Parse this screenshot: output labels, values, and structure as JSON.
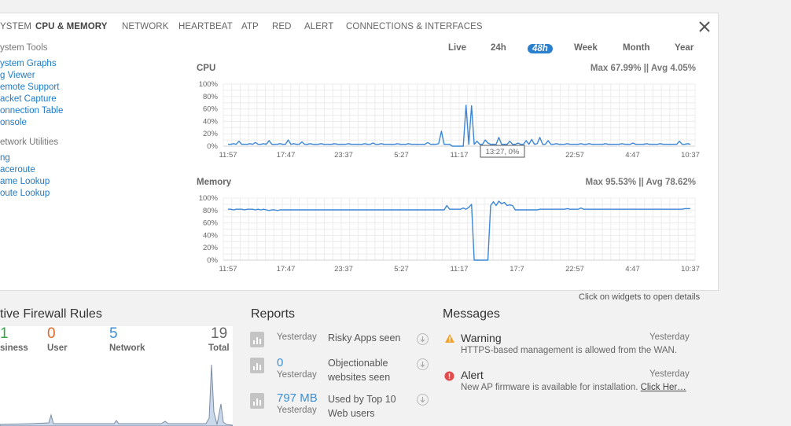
{
  "tabs": [
    "YSTEM",
    "CPU & MEMORY",
    "NETWORK",
    "HEARTBEAT",
    "ATP",
    "RED",
    "ALERT",
    "CONNECTIONS & INTERFACES"
  ],
  "active_tab": "CPU & MEMORY",
  "sidebar": {
    "system_tools_header": "ystem Tools",
    "system_tools": [
      "ystem Graphs",
      "g Viewer",
      "emote Support",
      "acket Capture",
      "onnection Table",
      "onsole"
    ],
    "network_utilities_header": "etwork Utilities",
    "network_utilities": [
      "ng",
      "aceroute",
      "ame Lookup",
      "oute Lookup"
    ]
  },
  "time_ranges": [
    "Live",
    "24h",
    "48h",
    "Week",
    "Month",
    "Year"
  ],
  "selected_range": "48h",
  "cpu": {
    "title": "CPU",
    "stats": "Max 67.99% || Avg 4.05%",
    "tooltip": "13:27, 0%"
  },
  "memory": {
    "title": "Memory",
    "stats": "Max 95.53% || Avg 78.62%"
  },
  "hint": "Click on widgets to open details",
  "firewall": {
    "title": "tive Firewall Rules",
    "counts": [
      {
        "value": "1",
        "label": "siness",
        "color": "#3aa64a"
      },
      {
        "value": "0",
        "label": "User",
        "color": "#e0692c"
      },
      {
        "value": "5",
        "label": "Network",
        "color": "#3a8fd8"
      },
      {
        "value": "19",
        "label": "Total",
        "color": "#666666"
      }
    ]
  },
  "reports": {
    "title": "Reports",
    "items": [
      {
        "value": "",
        "when": "Yesterday",
        "text": "Risky Apps seen"
      },
      {
        "value": "0",
        "when": "Yesterday",
        "text": "Objectionable websites seen"
      },
      {
        "value": "797 MB",
        "when": "Yesterday",
        "text": "Used by Top 10 Web users"
      }
    ]
  },
  "messages": {
    "title": "Messages",
    "items": [
      {
        "type": "Warning",
        "when": "Yesterday",
        "text": "HTTPS-based management is allowed from the WAN.",
        "link": ""
      },
      {
        "type": "Alert",
        "when": "Yesterday",
        "text": "New AP firmware is available for installation.",
        "link": "Click Her…"
      }
    ]
  },
  "chart_data": [
    {
      "type": "line",
      "title": "CPU",
      "ylabel": "",
      "ylim": [
        0,
        100
      ],
      "y_ticks": [
        "0%",
        "20%",
        "40%",
        "60%",
        "80%",
        "100%"
      ],
      "x_ticks": [
        "11:57",
        "17:47",
        "23:37",
        "5:27",
        "11:17",
        "17:7",
        "22:57",
        "4:47",
        "10:37"
      ],
      "series": [
        {
          "values": [
            3,
            3,
            4,
            3,
            8,
            3,
            3,
            3,
            4,
            3,
            6,
            3,
            3,
            4,
            3,
            9,
            3,
            3,
            3,
            4,
            3,
            3,
            10,
            3,
            4,
            3,
            3,
            7,
            3,
            3,
            4,
            3,
            3,
            3,
            4,
            3,
            3,
            3,
            3,
            4,
            3,
            3,
            3,
            3,
            4,
            3,
            3,
            3,
            3,
            3,
            4,
            3,
            3,
            5,
            3,
            3,
            4,
            3,
            3,
            3,
            3,
            3,
            4,
            3,
            3,
            3,
            4,
            3,
            3,
            3,
            3,
            3,
            3,
            6,
            3,
            3,
            3,
            4,
            24,
            3,
            3,
            3,
            0,
            0,
            0,
            0,
            0,
            66,
            3,
            65,
            3,
            8,
            3,
            3,
            10,
            5,
            3,
            3,
            3,
            14,
            3,
            3,
            3,
            8,
            3,
            3,
            5,
            3,
            3,
            9,
            3,
            11,
            3,
            4,
            14,
            3,
            3,
            9,
            3,
            3,
            4,
            3,
            3,
            3,
            4,
            3,
            3,
            3,
            3,
            4,
            3,
            3,
            4,
            3,
            3,
            3,
            3,
            3,
            4,
            3,
            3,
            3,
            3,
            3,
            4,
            3,
            3,
            3,
            5,
            3,
            3,
            3,
            3,
            4,
            3,
            3,
            3,
            3,
            4,
            3,
            3,
            3,
            3,
            3,
            3,
            8,
            3,
            3,
            4,
            3
          ]
        }
      ]
    },
    {
      "type": "line",
      "title": "Memory",
      "ylabel": "",
      "ylim": [
        0,
        100
      ],
      "y_ticks": [
        "0%",
        "20%",
        "40%",
        "60%",
        "80%",
        "100%"
      ],
      "x_ticks": [
        "11:57",
        "17:47",
        "23:37",
        "5:27",
        "11:17",
        "17:7",
        "22:57",
        "4:47",
        "10:37"
      ],
      "series": [
        {
          "values": [
            82,
            82,
            81,
            82,
            82,
            82,
            81,
            82,
            82,
            82,
            81,
            82,
            81,
            82,
            81,
            80,
            81,
            81,
            80,
            81,
            81,
            81,
            81,
            81,
            81,
            81,
            81,
            81,
            81,
            81,
            81,
            81,
            81,
            81,
            81,
            81,
            81,
            81,
            81,
            81,
            81,
            81,
            81,
            81,
            81,
            81,
            81,
            81,
            81,
            81,
            81,
            81,
            81,
            81,
            81,
            81,
            81,
            81,
            81,
            81,
            81,
            81,
            81,
            81,
            81,
            81,
            81,
            81,
            81,
            81,
            81,
            81,
            81,
            81,
            81,
            81,
            81,
            81,
            81,
            81,
            88,
            82,
            82,
            82,
            82,
            82,
            84,
            82,
            85,
            90,
            0,
            0,
            0,
            0,
            0,
            0,
            88,
            94,
            88,
            95,
            91,
            93,
            88,
            89,
            88,
            81,
            81,
            81,
            81,
            81,
            81,
            81,
            81,
            81,
            82,
            82,
            82,
            82,
            82,
            82,
            82,
            82,
            82,
            82,
            83,
            82,
            82,
            82,
            82,
            84,
            82,
            82,
            82,
            82,
            82,
            82,
            82,
            82,
            82,
            82,
            82,
            82,
            82,
            82,
            82,
            82,
            82,
            82,
            82,
            82,
            82,
            82,
            82,
            82,
            82,
            82,
            82,
            82,
            82,
            82,
            82,
            82,
            82,
            82,
            82,
            82,
            82,
            83,
            83,
            83
          ]
        }
      ]
    }
  ]
}
